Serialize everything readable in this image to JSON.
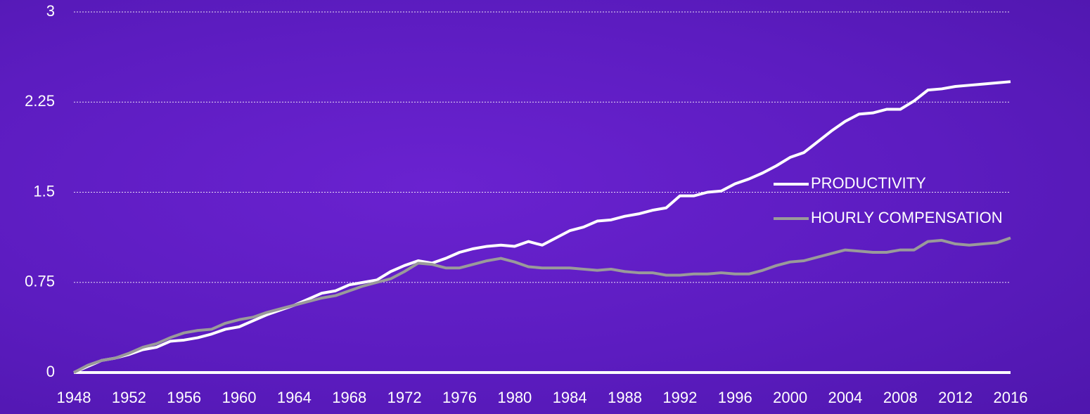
{
  "chart_data": {
    "type": "line",
    "x": [
      1948,
      1949,
      1950,
      1951,
      1952,
      1953,
      1954,
      1955,
      1956,
      1957,
      1958,
      1959,
      1960,
      1961,
      1962,
      1963,
      1964,
      1965,
      1966,
      1967,
      1968,
      1969,
      1970,
      1971,
      1972,
      1973,
      1974,
      1975,
      1976,
      1977,
      1978,
      1979,
      1980,
      1981,
      1982,
      1983,
      1984,
      1985,
      1986,
      1987,
      1988,
      1989,
      1990,
      1991,
      1992,
      1993,
      1994,
      1995,
      1996,
      1997,
      1998,
      1999,
      2000,
      2001,
      2002,
      2003,
      2004,
      2005,
      2006,
      2007,
      2008,
      2009,
      2010,
      2011,
      2012,
      2013,
      2014,
      2015,
      2016
    ],
    "series": [
      {
        "name": "PRODUCTIVITY",
        "color": "#ffffff",
        "values": [
          0,
          0.05,
          0.1,
          0.12,
          0.15,
          0.19,
          0.21,
          0.26,
          0.27,
          0.29,
          0.32,
          0.36,
          0.38,
          0.43,
          0.48,
          0.52,
          0.56,
          0.61,
          0.66,
          0.68,
          0.73,
          0.75,
          0.77,
          0.84,
          0.89,
          0.93,
          0.91,
          0.95,
          1.0,
          1.03,
          1.05,
          1.06,
          1.05,
          1.09,
          1.06,
          1.12,
          1.18,
          1.21,
          1.26,
          1.27,
          1.3,
          1.32,
          1.35,
          1.37,
          1.47,
          1.47,
          1.5,
          1.51,
          1.57,
          1.61,
          1.66,
          1.72,
          1.79,
          1.83,
          1.92,
          2.01,
          2.09,
          2.15,
          2.16,
          2.19,
          2.19,
          2.26,
          2.35,
          2.36,
          2.38,
          2.39,
          2.4,
          2.41,
          2.42
        ]
      },
      {
        "name": "HOURLY COMPENSATION",
        "color": "#9a9a9a",
        "values": [
          0,
          0.06,
          0.1,
          0.12,
          0.16,
          0.21,
          0.24,
          0.29,
          0.33,
          0.35,
          0.36,
          0.41,
          0.44,
          0.46,
          0.5,
          0.53,
          0.56,
          0.59,
          0.62,
          0.64,
          0.68,
          0.72,
          0.75,
          0.78,
          0.84,
          0.91,
          0.9,
          0.87,
          0.87,
          0.9,
          0.93,
          0.95,
          0.92,
          0.88,
          0.87,
          0.87,
          0.87,
          0.86,
          0.85,
          0.86,
          0.84,
          0.83,
          0.83,
          0.81,
          0.81,
          0.82,
          0.82,
          0.83,
          0.82,
          0.82,
          0.85,
          0.89,
          0.92,
          0.93,
          0.96,
          0.99,
          1.02,
          1.01,
          1.0,
          1.0,
          1.02,
          1.02,
          1.09,
          1.1,
          1.07,
          1.06,
          1.07,
          1.08,
          1.12
        ]
      }
    ],
    "xlim": [
      1948,
      2016
    ],
    "xticks": [
      1948,
      1952,
      1956,
      1960,
      1964,
      1968,
      1972,
      1976,
      1980,
      1984,
      1988,
      1992,
      1996,
      2000,
      2004,
      2008,
      2012,
      2016
    ],
    "ylim": [
      0,
      3
    ],
    "yticks": [
      0,
      0.75,
      1.5,
      2.25,
      3
    ],
    "grid": true,
    "legend": "right"
  }
}
